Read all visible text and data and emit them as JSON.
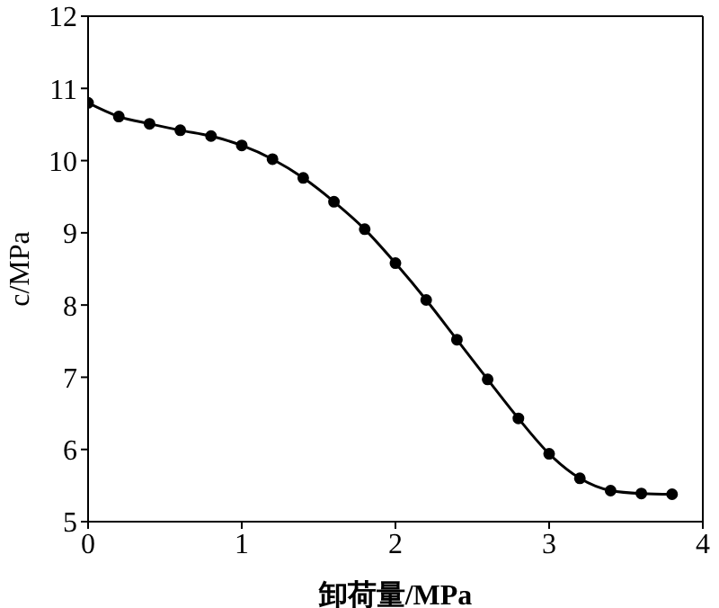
{
  "chart_data": {
    "type": "line",
    "xlabel": "卸荷量/MPa",
    "ylabel": "c/MPa",
    "x": [
      0,
      0.2,
      0.4,
      0.6,
      0.8,
      1.0,
      1.2,
      1.4,
      1.6,
      1.8,
      2.0,
      2.2,
      2.4,
      2.6,
      2.8,
      3.0,
      3.2,
      3.4,
      3.6,
      3.8
    ],
    "series": [
      {
        "color": "#000000",
        "values": [
          10.8,
          10.61,
          10.51,
          10.42,
          10.34,
          10.21,
          10.02,
          9.76,
          9.43,
          9.05,
          8.58,
          8.07,
          7.52,
          6.97,
          6.43,
          5.94,
          5.6,
          5.43,
          5.39,
          5.38
        ]
      }
    ],
    "xlim": [
      0,
      4
    ],
    "xticks": [
      0,
      1,
      2,
      3,
      4
    ],
    "ylim": [
      5,
      12
    ],
    "yticks": [
      5,
      6,
      7,
      8,
      9,
      10,
      11,
      12
    ],
    "grid": false,
    "legend": false,
    "marker": "circle",
    "line_style": "solid"
  }
}
